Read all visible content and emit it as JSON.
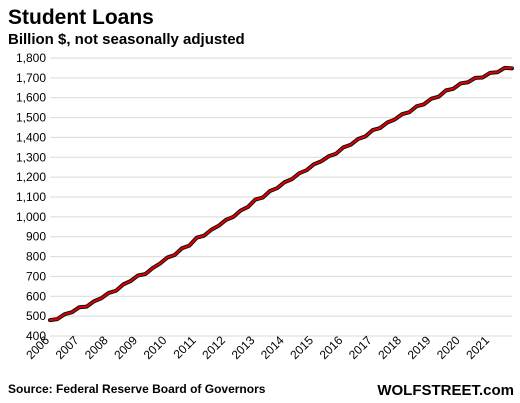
{
  "chart_data": {
    "type": "line",
    "title": "Student Loans",
    "subtitle": "Billion $, not seasonally adjusted",
    "xlabel": "",
    "ylabel": "",
    "ylim": [
      400,
      1800
    ],
    "yticks": [
      400,
      500,
      600,
      700,
      800,
      900,
      1000,
      1100,
      1200,
      1300,
      1400,
      1500,
      1600,
      1700,
      1800
    ],
    "ytick_labels": [
      "400",
      "500",
      "600",
      "700",
      "800",
      "900",
      "1,000",
      "1,100",
      "1,200",
      "1,300",
      "1,400",
      "1,500",
      "1,600",
      "1,700",
      "1,800"
    ],
    "xlim": [
      2006,
      2021.75
    ],
    "xticks": [
      2006,
      2007,
      2008,
      2009,
      2010,
      2011,
      2012,
      2013,
      2014,
      2015,
      2016,
      2017,
      2018,
      2019,
      2020,
      2021
    ],
    "xtick_labels": [
      "2006",
      "2007",
      "2008",
      "2009",
      "2010",
      "2011",
      "2012",
      "2013",
      "2014",
      "2015",
      "2016",
      "2017",
      "2018",
      "2019",
      "2020",
      "2021"
    ],
    "grid": true,
    "legend": "none",
    "series": [
      {
        "color": "#e00000",
        "values": [
          {
            "x": "2006 Q1",
            "y": 480
          },
          {
            "x": "2006 Q2",
            "y": 485
          },
          {
            "x": "2006 Q3",
            "y": 510
          },
          {
            "x": "2006 Q4",
            "y": 520
          },
          {
            "x": "2007 Q1",
            "y": 545
          },
          {
            "x": "2007 Q2",
            "y": 548
          },
          {
            "x": "2007 Q3",
            "y": 575
          },
          {
            "x": "2007 Q4",
            "y": 590
          },
          {
            "x": "2008 Q1",
            "y": 617
          },
          {
            "x": "2008 Q2",
            "y": 628
          },
          {
            "x": "2008 Q3",
            "y": 660
          },
          {
            "x": "2008 Q4",
            "y": 677
          },
          {
            "x": "2009 Q1",
            "y": 705
          },
          {
            "x": "2009 Q2",
            "y": 712
          },
          {
            "x": "2009 Q3",
            "y": 742
          },
          {
            "x": "2009 Q4",
            "y": 765
          },
          {
            "x": "2010 Q1",
            "y": 795
          },
          {
            "x": "2010 Q2",
            "y": 808
          },
          {
            "x": "2010 Q3",
            "y": 842
          },
          {
            "x": "2010 Q4",
            "y": 855
          },
          {
            "x": "2011 Q1",
            "y": 895
          },
          {
            "x": "2011 Q2",
            "y": 905
          },
          {
            "x": "2011 Q3",
            "y": 935
          },
          {
            "x": "2011 Q4",
            "y": 955
          },
          {
            "x": "2012 Q1",
            "y": 985
          },
          {
            "x": "2012 Q2",
            "y": 1000
          },
          {
            "x": "2012 Q3",
            "y": 1032
          },
          {
            "x": "2012 Q4",
            "y": 1050
          },
          {
            "x": "2013 Q1",
            "y": 1087
          },
          {
            "x": "2013 Q2",
            "y": 1097
          },
          {
            "x": "2013 Q3",
            "y": 1130
          },
          {
            "x": "2013 Q4",
            "y": 1145
          },
          {
            "x": "2014 Q1",
            "y": 1175
          },
          {
            "x": "2014 Q2",
            "y": 1190
          },
          {
            "x": "2014 Q3",
            "y": 1220
          },
          {
            "x": "2014 Q4",
            "y": 1235
          },
          {
            "x": "2015 Q1",
            "y": 1265
          },
          {
            "x": "2015 Q2",
            "y": 1280
          },
          {
            "x": "2015 Q3",
            "y": 1305
          },
          {
            "x": "2015 Q4",
            "y": 1318
          },
          {
            "x": "2016 Q1",
            "y": 1350
          },
          {
            "x": "2016 Q2",
            "y": 1363
          },
          {
            "x": "2016 Q3",
            "y": 1392
          },
          {
            "x": "2016 Q4",
            "y": 1405
          },
          {
            "x": "2017 Q1",
            "y": 1437
          },
          {
            "x": "2017 Q2",
            "y": 1447
          },
          {
            "x": "2017 Q3",
            "y": 1475
          },
          {
            "x": "2017 Q4",
            "y": 1490
          },
          {
            "x": "2018 Q1",
            "y": 1517
          },
          {
            "x": "2018 Q2",
            "y": 1527
          },
          {
            "x": "2018 Q3",
            "y": 1557
          },
          {
            "x": "2018 Q4",
            "y": 1567
          },
          {
            "x": "2019 Q1",
            "y": 1595
          },
          {
            "x": "2019 Q2",
            "y": 1605
          },
          {
            "x": "2019 Q3",
            "y": 1637
          },
          {
            "x": "2019 Q4",
            "y": 1645
          },
          {
            "x": "2020 Q1",
            "y": 1672
          },
          {
            "x": "2020 Q2",
            "y": 1678
          },
          {
            "x": "2020 Q3",
            "y": 1700
          },
          {
            "x": "2020 Q4",
            "y": 1702
          },
          {
            "x": "2021 Q1",
            "y": 1725
          },
          {
            "x": "2021 Q2",
            "y": 1728
          },
          {
            "x": "2021 Q3",
            "y": 1750
          },
          {
            "x": "2021 Q4",
            "y": 1748
          }
        ]
      }
    ]
  },
  "footer": {
    "source": "Source: Federal Reserve Board of Governors",
    "brand": "WOLFSTREET.com"
  }
}
